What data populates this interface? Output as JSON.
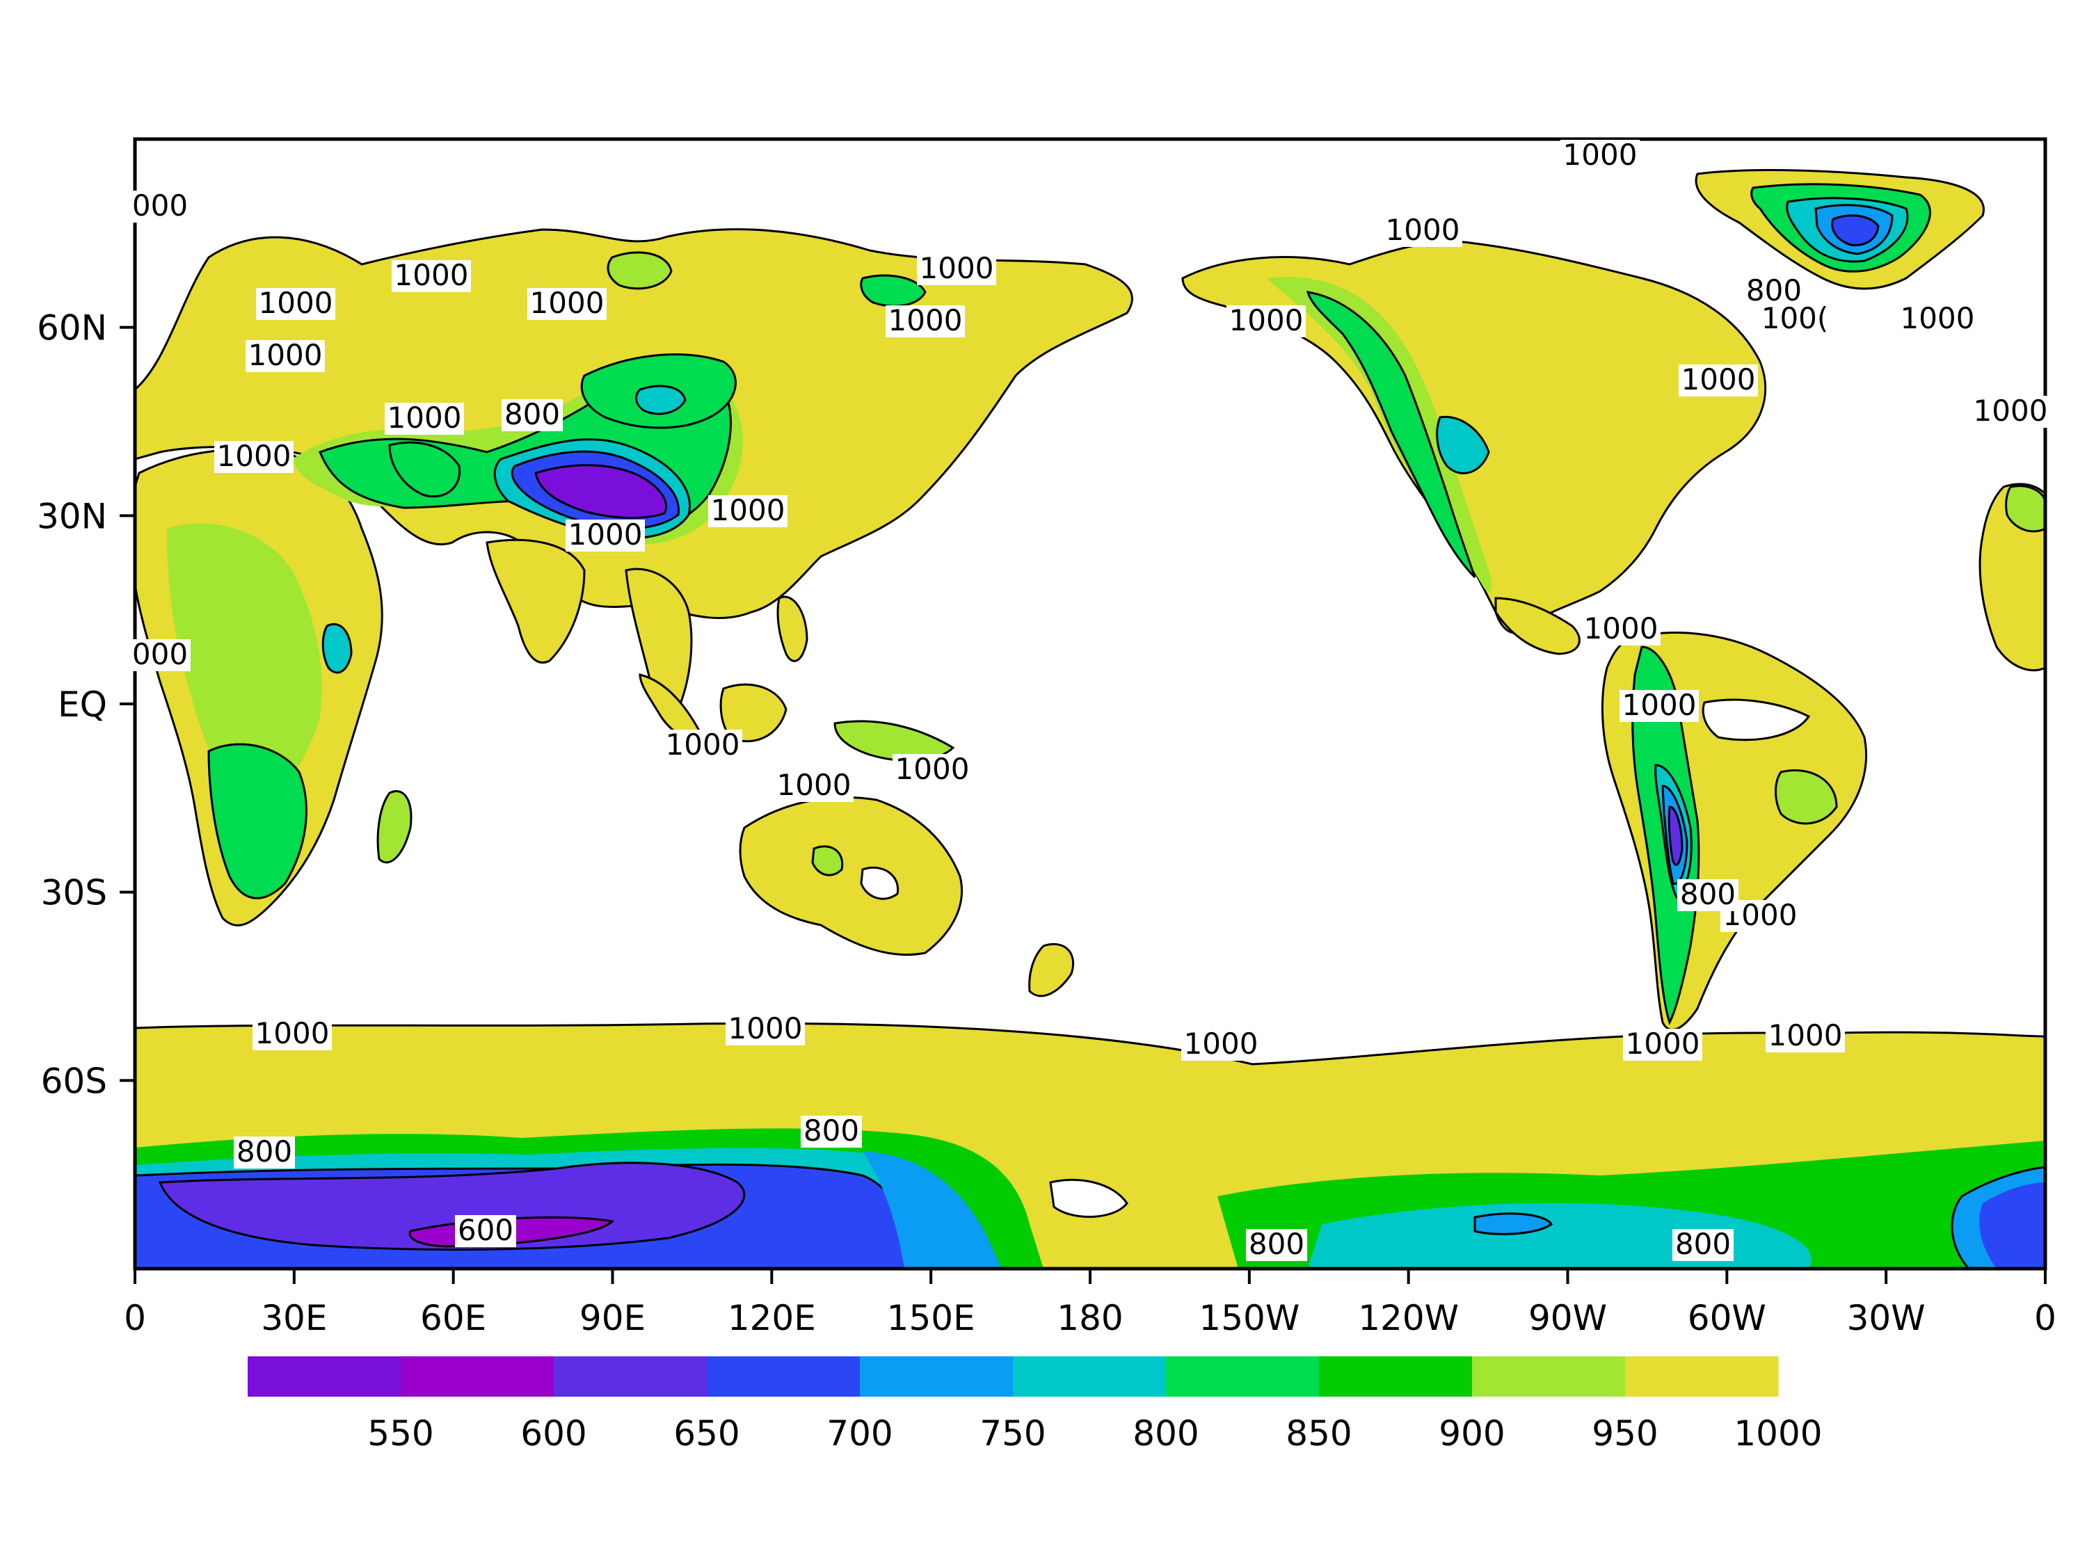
{
  "map": {
    "type": "filled-contour",
    "projection": "cylindrical-equidistant",
    "lon_range": [
      0,
      360
    ],
    "lat_range": [
      -90,
      90
    ],
    "x_ticks": [
      "0",
      "30E",
      "60E",
      "90E",
      "120E",
      "150E",
      "180",
      "150W",
      "120W",
      "90W",
      "60W",
      "30W",
      "0"
    ],
    "y_ticks": [
      "60N",
      "30N",
      "EQ",
      "30S",
      "60S"
    ],
    "contour_labels": [
      "1000",
      "1000",
      "1000",
      "1000",
      "1000",
      "1000",
      "1000",
      "1000",
      "1000",
      "1000",
      "1000",
      "1000",
      "1000",
      "1000",
      "1000",
      "1000",
      "1000",
      "1000",
      "1000",
      "1000",
      "1000",
      "1000",
      "1000",
      "1000",
      "1000",
      "1000",
      "1000",
      "800",
      "800",
      "800",
      "800",
      "800",
      "800",
      "800",
      "600",
      "000",
      "000",
      "100("
    ]
  },
  "colorbar": {
    "labels": [
      "550",
      "600",
      "650",
      "700",
      "750",
      "800",
      "850",
      "900",
      "950",
      "1000"
    ],
    "colors": [
      "#7a0fdc",
      "#9a00cc",
      "#5e2ee6",
      "#2b47f5",
      "#0b9cf4",
      "#00c8c8",
      "#00dc50",
      "#00cc00",
      "#a0e632",
      "#e6dc32"
    ]
  },
  "palette": {
    "lt550": "#7a0fdc",
    "550": "#9a00cc",
    "600": "#5e2ee6",
    "650": "#2b47f5",
    "700": "#0b9cf4",
    "750": "#00c8c8",
    "800": "#00dc50",
    "850": "#00cc00",
    "900": "#a0e632",
    "950": "#e6dc32",
    "ocean": "#ffffff"
  }
}
